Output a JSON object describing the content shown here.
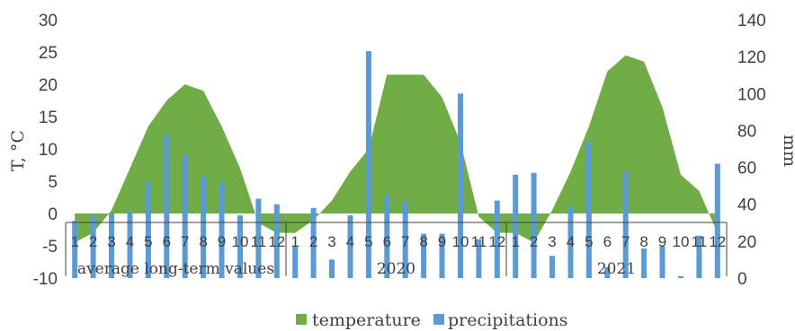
{
  "chart_data": {
    "type": "area+bar",
    "ylabel_left": "T, °C",
    "ylabel_right": "mm",
    "ylim_left": [
      -10,
      30
    ],
    "ylim_right": [
      0,
      140
    ],
    "yticks_left": [
      "30",
      "25",
      "20",
      "15",
      "10",
      "5",
      "0",
      "-5",
      "-10"
    ],
    "yticks_right": [
      "140",
      "120",
      "100",
      "80",
      "60",
      "40",
      "20",
      "0"
    ],
    "groups": [
      "average long-term values",
      "2020",
      "2021"
    ],
    "months": [
      "1",
      "2",
      "3",
      "4",
      "5",
      "6",
      "7",
      "8",
      "9",
      "10",
      "11",
      "12",
      "1",
      "2",
      "3",
      "4",
      "5",
      "6",
      "7",
      "8",
      "9",
      "10",
      "11",
      "12",
      "1",
      "2",
      "3",
      "4",
      "5",
      "6",
      "7",
      "8",
      "9",
      "10",
      "11",
      "12"
    ],
    "series": [
      {
        "name": "temperature",
        "type": "area",
        "color": "#70ad47",
        "values": [
          -4.5,
          -3,
          0.5,
          7,
          13.5,
          17.5,
          20,
          19,
          13.5,
          7,
          -1.5,
          -3,
          -3,
          -1,
          2,
          6.5,
          10,
          21.5,
          21.5,
          21.5,
          18,
          11,
          -0.5,
          -3,
          -3,
          -4.5,
          0.5,
          6.5,
          13.5,
          22,
          24.5,
          23.5,
          16.5,
          6,
          3.5,
          -3
        ]
      },
      {
        "name": "precipitations",
        "type": "bar",
        "color": "#5b9bd5",
        "values": [
          31,
          34,
          35,
          36,
          52,
          78,
          67,
          55,
          52,
          34,
          43,
          40,
          17,
          38,
          10,
          34,
          123,
          45,
          42,
          24,
          24,
          100,
          21,
          42,
          56,
          57,
          12,
          39,
          74,
          6,
          58,
          16,
          17,
          1,
          23,
          62
        ]
      }
    ],
    "legend": {
      "position": "bottom"
    },
    "grid": false
  }
}
